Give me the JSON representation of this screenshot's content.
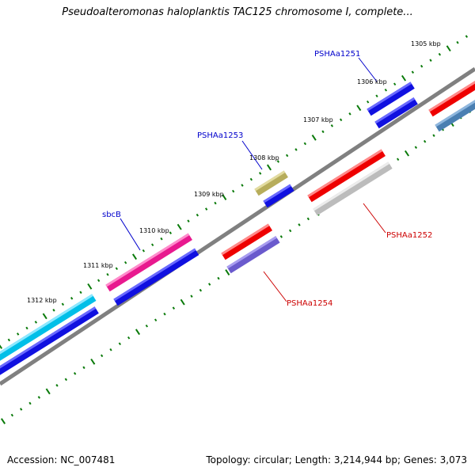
{
  "title": "Pseudoalteromonas haloplanktis TAC125 chromosome I, complete...",
  "footer": {
    "accession": "Accession: NC_007481",
    "summary": "Topology: circular; Length: 3,214,944 bp; Genes: 3,073"
  },
  "colors": {
    "backbone": "#808080",
    "tick": "#0a7a0a",
    "forward_label": "#0000cc",
    "reverse_label": "#cc0000"
  },
  "tick_labels": [
    "1305 kbp",
    "1306 kbp",
    "1307 kbp",
    "1308 kbp",
    "1309 kbp",
    "1310 kbp",
    "1311 kbp",
    "1312 kbp"
  ],
  "gene_labels": [
    "PSHAa1251",
    "PSHAa1253",
    "sbcB",
    "PSHAa1252",
    "PSHAa1254"
  ],
  "feature_colors": {
    "fwd_cyan": "#00bfe8",
    "fwd_blue": "#1010e0",
    "fwd_pink": "#e8198f",
    "fwd_olive": "#b7ad5b",
    "rev_red": "#ee0000",
    "rev_gray": "#bcbcbc",
    "rev_purple": "#6a5acd",
    "rev_steel": "#4a7fb2"
  }
}
